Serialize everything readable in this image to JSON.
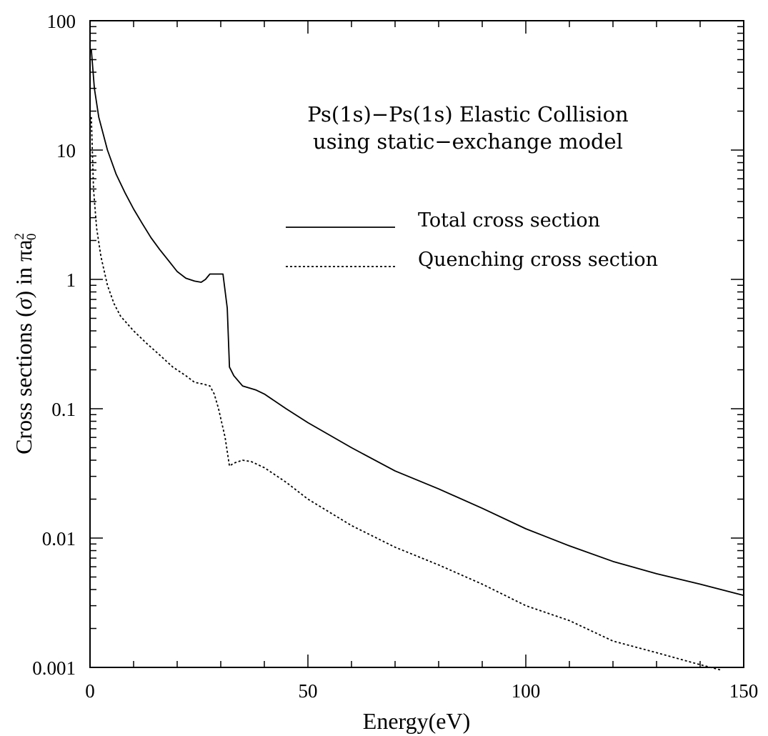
{
  "chart_data": {
    "type": "line",
    "title": "",
    "annotation_lines": [
      "Ps(1s)−Ps(1s) Elastic Collision",
      "using static−exchange model"
    ],
    "xlabel": "Energy(eV)",
    "ylabel_prefix": "Cross sections (",
    "ylabel_sigma": "σ",
    "ylabel_mid": ") in πa",
    "ylabel_sup": "2",
    "ylabel_sub": "0",
    "xlim": [
      0,
      150
    ],
    "ylim": [
      0.001,
      100
    ],
    "yscale": "log",
    "x_ticks": [
      0,
      50,
      100,
      150
    ],
    "x_tick_labels": [
      "0",
      "50",
      "100",
      "150"
    ],
    "y_ticks": [
      0.001,
      0.01,
      0.1,
      1,
      10,
      100
    ],
    "y_tick_labels": [
      "0.001",
      "0.01",
      "0.1",
      "1",
      "10",
      "100"
    ],
    "legend_position": "upper-right",
    "series": [
      {
        "name": "Total cross section",
        "style": "solid",
        "points": [
          [
            0.3,
            60
          ],
          [
            1,
            30
          ],
          [
            2,
            18
          ],
          [
            4,
            10
          ],
          [
            6,
            6.5
          ],
          [
            8,
            4.7
          ],
          [
            10,
            3.5
          ],
          [
            12,
            2.7
          ],
          [
            14,
            2.1
          ],
          [
            16,
            1.7
          ],
          [
            18,
            1.4
          ],
          [
            20,
            1.15
          ],
          [
            22,
            1.02
          ],
          [
            24,
            0.97
          ],
          [
            25.5,
            0.95
          ],
          [
            26.5,
            1.0
          ],
          [
            27.5,
            1.1
          ],
          [
            30.5,
            1.1
          ],
          [
            31.5,
            0.6
          ],
          [
            32,
            0.21
          ],
          [
            33,
            0.18
          ],
          [
            35,
            0.15
          ],
          [
            38,
            0.14
          ],
          [
            40,
            0.13
          ],
          [
            45,
            0.1
          ],
          [
            50,
            0.078
          ],
          [
            60,
            0.05
          ],
          [
            70,
            0.033
          ],
          [
            80,
            0.024
          ],
          [
            90,
            0.017
          ],
          [
            100,
            0.0118
          ],
          [
            110,
            0.0087
          ],
          [
            120,
            0.0066
          ],
          [
            130,
            0.0053
          ],
          [
            140,
            0.0044
          ],
          [
            150,
            0.0036
          ]
        ]
      },
      {
        "name": "Quenching cross section",
        "style": "dashed",
        "points": [
          [
            0.3,
            18
          ],
          [
            0.8,
            5
          ],
          [
            1.5,
            2.5
          ],
          [
            2.5,
            1.5
          ],
          [
            4,
            0.9
          ],
          [
            5.5,
            0.65
          ],
          [
            7,
            0.52
          ],
          [
            10,
            0.4
          ],
          [
            13,
            0.32
          ],
          [
            16,
            0.26
          ],
          [
            19,
            0.21
          ],
          [
            22,
            0.18
          ],
          [
            24,
            0.16
          ],
          [
            26,
            0.155
          ],
          [
            27.5,
            0.15
          ],
          [
            28.5,
            0.13
          ],
          [
            29.5,
            0.1
          ],
          [
            31,
            0.06
          ],
          [
            32,
            0.036
          ],
          [
            33,
            0.038
          ],
          [
            35,
            0.04
          ],
          [
            37,
            0.039
          ],
          [
            40,
            0.035
          ],
          [
            45,
            0.027
          ],
          [
            50,
            0.02
          ],
          [
            60,
            0.0125
          ],
          [
            70,
            0.0085
          ],
          [
            80,
            0.0062
          ],
          [
            90,
            0.0044
          ],
          [
            100,
            0.003
          ],
          [
            110,
            0.0023
          ],
          [
            120,
            0.0016
          ],
          [
            130,
            0.0013
          ],
          [
            140,
            0.00105
          ],
          [
            145,
            0.00095
          ]
        ]
      }
    ]
  }
}
